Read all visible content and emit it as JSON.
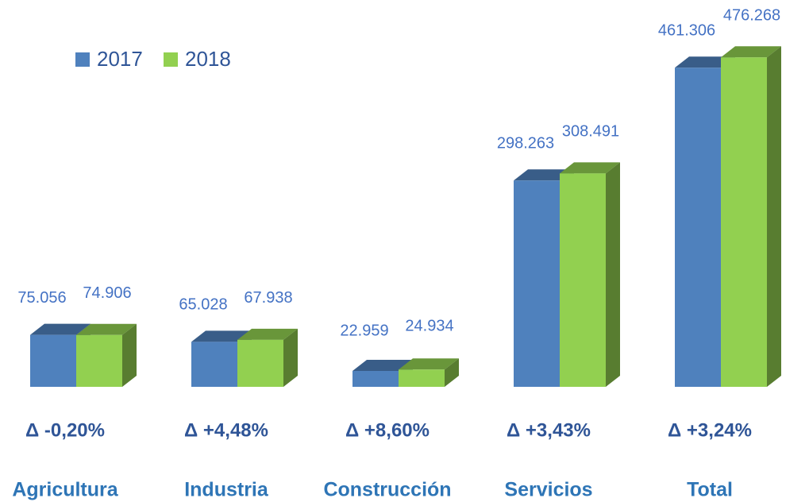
{
  "chart_data": {
    "type": "bar3d",
    "categories": [
      "Agricultura",
      "Industria",
      "Construcción",
      "Servicios",
      "Total"
    ],
    "annotations": [
      "Δ -0,20%",
      "Δ +4,48%",
      "Δ +8,60%",
      "Δ +3,43%",
      "Δ +3,24%"
    ],
    "series": [
      {
        "name": "2017",
        "color": "#4f81bd",
        "values": [
          75056,
          65028,
          22959,
          298263,
          461306
        ],
        "value_labels": [
          "75.056",
          "65.028",
          "22.959",
          "298.263",
          "461.306"
        ]
      },
      {
        "name": "2018",
        "color": "#92d050",
        "values": [
          74906,
          67938,
          24934,
          308491,
          476268
        ],
        "value_labels": [
          "74.906",
          "67.938",
          "24.934",
          "308.491",
          "476.268"
        ]
      }
    ],
    "ylim": [
      0,
      550000
    ]
  }
}
